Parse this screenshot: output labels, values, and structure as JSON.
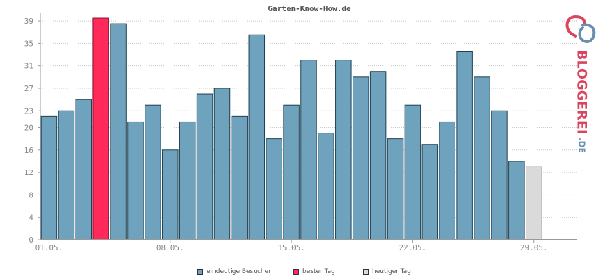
{
  "chart_data": {
    "type": "bar",
    "title": "Garten-Know-How.de",
    "y_ticks": [
      0,
      4,
      8,
      12,
      16,
      20,
      23,
      27,
      31,
      35,
      39
    ],
    "ylim": [
      0,
      40
    ],
    "x_tick_labels": [
      {
        "index": 0,
        "label": "01.05."
      },
      {
        "index": 7,
        "label": "08.05."
      },
      {
        "index": 14,
        "label": "15.05."
      },
      {
        "index": 21,
        "label": "22.05."
      },
      {
        "index": 28,
        "label": "29.05."
      }
    ],
    "grid": true,
    "legend_position": "bottom",
    "series": [
      {
        "name": "eindeutige Besucher",
        "color": "#6fa3bd"
      },
      {
        "name": "bester Tag",
        "color": "#ff2a5a"
      },
      {
        "name": "heutiger Tag",
        "color": "#dadada"
      }
    ],
    "values": [
      22,
      23,
      25,
      39.5,
      38.5,
      21,
      24,
      16,
      21,
      26,
      27,
      22,
      36.5,
      18,
      24,
      32,
      19,
      32,
      29,
      30,
      18,
      24,
      17,
      21,
      33.5,
      29,
      23,
      14,
      13
    ],
    "best_index": 3,
    "today_index": 28,
    "total_slots": 31
  },
  "brand": {
    "text": "BLOGGEREI",
    "suffix": ".DE",
    "color_main": "#d9455f",
    "color_suffix": "#6b8fb0"
  }
}
